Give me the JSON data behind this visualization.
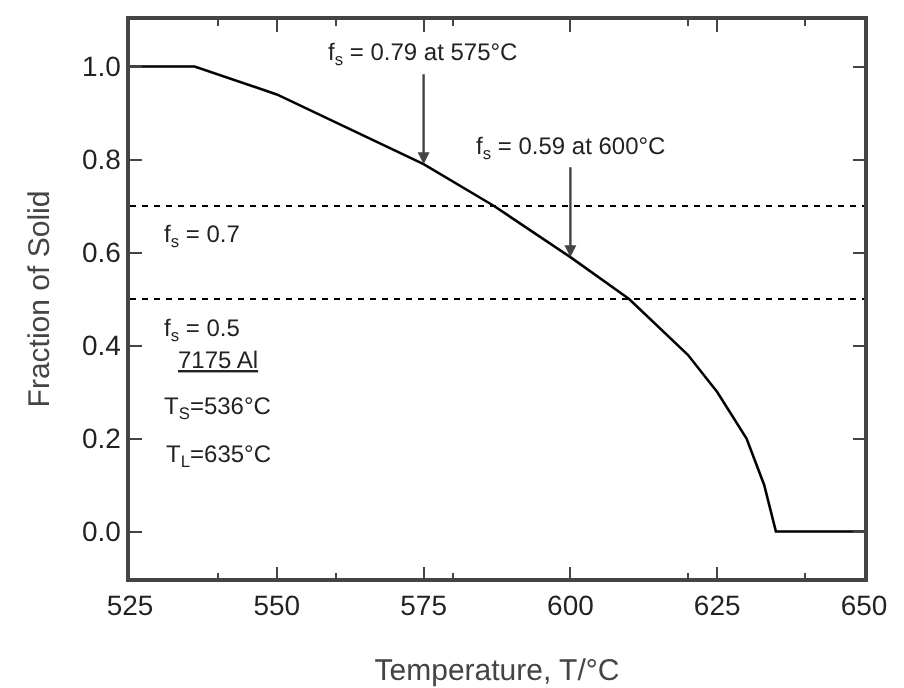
{
  "chart_data": {
    "type": "line",
    "xlabel": "Temperature, T/°C",
    "ylabel": "Fraction of Solid",
    "x": [
      525,
      536,
      550,
      575,
      587,
      600,
      610,
      620,
      625,
      630,
      633,
      635,
      650
    ],
    "series": [
      {
        "color": "#000000",
        "values": [
          1.0,
          1.0,
          0.94,
          0.79,
          0.7,
          0.59,
          0.5,
          0.38,
          0.3,
          0.2,
          0.1,
          0,
          0
        ]
      }
    ],
    "xlim": [
      525,
      650
    ],
    "xticks": [
      525,
      550,
      575,
      600,
      625,
      650
    ],
    "ylim": [
      -0.1,
      1.1
    ],
    "yticks": [
      {
        "value": 0,
        "label": "0.0"
      },
      0.2,
      0.4,
      0.6,
      0.8,
      {
        "value": 1,
        "label": "1.0"
      }
    ],
    "grid": false,
    "marker": "none",
    "line_style": "solid",
    "ref_lines": [
      {
        "axis": "y",
        "value": 0.7,
        "label": "f$_{s}$ = 0.7",
        "color": "#000000",
        "line_style": "dotted"
      },
      {
        "axis": "y",
        "value": 0.5,
        "label": "f$_{s}$ = 0.5",
        "color": "#000000",
        "line_style": "dotted"
      }
    ],
    "annotations": [
      {
        "text": "f$_{s}$ = 0.79 at 575°C",
        "x": 575,
        "y": 0.79
      },
      {
        "text": "f$_{s}$ = 0.59 at 600°C",
        "x": 600,
        "y": 0.59
      },
      "7175 Al",
      "T$_{S}$=536°C",
      "T$_{L}$=635°C"
    ]
  }
}
